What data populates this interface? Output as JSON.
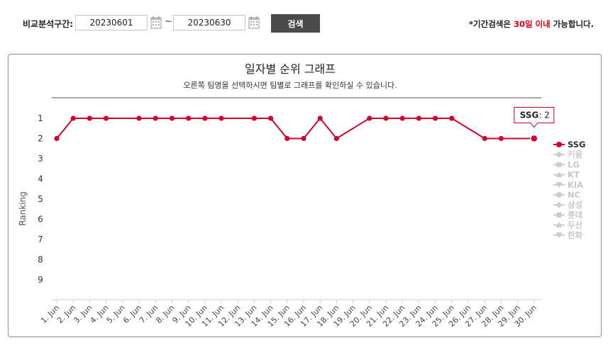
{
  "search": {
    "label": "비교분석구간:",
    "start_date": "20230601",
    "end_date": "20230630",
    "tilde": "~",
    "button_label": "검색",
    "notice_prefix": "*기간검색은 ",
    "notice_highlight": "30일 이내",
    "notice_suffix": " 가능합니다."
  },
  "chart_data": {
    "type": "line",
    "title": "일자별 순위 그래프",
    "subtitle": "오른쪽 팀명을 선택하시면 팀별로 그래프를 확인하실 수 있습니다.",
    "ylabel": "Ranking",
    "xlabel": "",
    "y_ticks": [
      1,
      2,
      3,
      4,
      5,
      6,
      7,
      8,
      9
    ],
    "y_reversed": true,
    "x": [
      "1. Jun",
      "2. Jun",
      "3. Jun",
      "4. Jun",
      "5. Jun",
      "6. Jun",
      "7. Jun",
      "8. Jun",
      "9. Jun",
      "10. Jun",
      "11. Jun",
      "12. Jun",
      "13. Jun",
      "14. Jun",
      "15. Jun",
      "16. Jun",
      "17. Jun",
      "18. Jun",
      "19. Jun",
      "20. Jun",
      "21. Jun",
      "22. Jun",
      "23. Jun",
      "24. Jun",
      "25. Jun",
      "26. Jun",
      "27. Jun",
      "28. Jun",
      "29. Jun",
      "30. Jun"
    ],
    "series": [
      {
        "name": "SSG",
        "color": "#d7002a",
        "visible": true,
        "values": [
          2,
          1,
          1,
          1,
          null,
          1,
          1,
          1,
          1,
          1,
          1,
          null,
          1,
          1,
          2,
          2,
          1,
          2,
          null,
          1,
          1,
          1,
          1,
          1,
          1,
          null,
          2,
          2,
          null,
          2
        ]
      }
    ],
    "legend": [
      {
        "name": "SSG",
        "marker": "circle",
        "active": true
      },
      {
        "name": "키움",
        "marker": "diamond",
        "active": false
      },
      {
        "name": "LG",
        "marker": "square",
        "active": false
      },
      {
        "name": "KT",
        "marker": "triangle",
        "active": false
      },
      {
        "name": "KIA",
        "marker": "triangle-down",
        "active": false
      },
      {
        "name": "NC",
        "marker": "circle",
        "active": false
      },
      {
        "name": "삼성",
        "marker": "diamond",
        "active": false
      },
      {
        "name": "롯데",
        "marker": "square",
        "active": false
      },
      {
        "name": "두산",
        "marker": "triangle",
        "active": false
      },
      {
        "name": "한화",
        "marker": "triangle-down",
        "active": false
      }
    ],
    "legend_position": "right",
    "grid": false,
    "tooltip": {
      "series": "SSG",
      "value": ": 2",
      "x": "30. Jun"
    }
  }
}
